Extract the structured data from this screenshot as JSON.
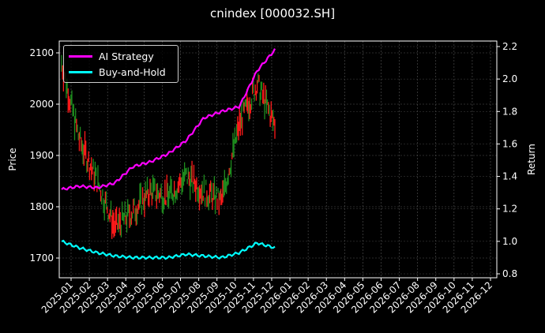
{
  "title": "cnindex [000032.SH]",
  "legend": {
    "items": [
      {
        "label": "AI Strategy",
        "color": "#ff00ff"
      },
      {
        "label": "Buy-and-Hold",
        "color": "#00ffff"
      }
    ]
  },
  "axes": {
    "left_label": "Price",
    "right_label": "Return",
    "left_ticks": [
      "1700",
      "1800",
      "1900",
      "2000",
      "2100"
    ],
    "right_ticks": [
      "0.8",
      "1.0",
      "1.2",
      "1.4",
      "1.6",
      "1.8",
      "2.0",
      "2.2"
    ],
    "x_ticks": [
      "2025-01",
      "2025-02",
      "2025-03",
      "2025-04",
      "2025-05",
      "2025-06",
      "2025-07",
      "2025-08",
      "2025-09",
      "2025-10",
      "2025-11",
      "2025-12",
      "2026-01",
      "2026-02",
      "2026-03",
      "2026-04",
      "2026-05",
      "2026-06",
      "2026-07",
      "2026-08",
      "2026-09",
      "2026-10",
      "2026-11",
      "2026-12"
    ]
  },
  "chart_data": {
    "type": "line",
    "title": "cnindex [000032.SH]",
    "xlabel": "",
    "ylabel": "Price",
    "ylabel_right": "Return",
    "ylim": [
      1665,
      2125
    ],
    "ylim_right": [
      0.77,
      2.23
    ],
    "grid": true,
    "legend_position": "upper left",
    "x": [
      "2025-01",
      "2025-02",
      "2025-03",
      "2025-04",
      "2025-05",
      "2025-06",
      "2025-07",
      "2025-08",
      "2025-09",
      "2025-10",
      "2025-11",
      "2025-12",
      "2026-01"
    ],
    "series": [
      {
        "name": "Price (candlestick)",
        "axis": "left",
        "values": [
          2080,
          1930,
          1850,
          1760,
          1790,
          1830,
          1820,
          1860,
          1830,
          1810,
          1960,
          2040,
          1960
        ]
      },
      {
        "name": "AI Strategy",
        "axis": "right",
        "color": "#ff00ff",
        "values": [
          1.32,
          1.34,
          1.33,
          1.36,
          1.46,
          1.49,
          1.54,
          1.62,
          1.76,
          1.8,
          1.83,
          2.05,
          2.18
        ]
      },
      {
        "name": "Buy-and-Hold",
        "axis": "right",
        "color": "#00ffff",
        "values": [
          1.0,
          0.96,
          0.93,
          0.91,
          0.9,
          0.9,
          0.9,
          0.92,
          0.91,
          0.9,
          0.93,
          0.99,
          0.96
        ]
      }
    ]
  }
}
